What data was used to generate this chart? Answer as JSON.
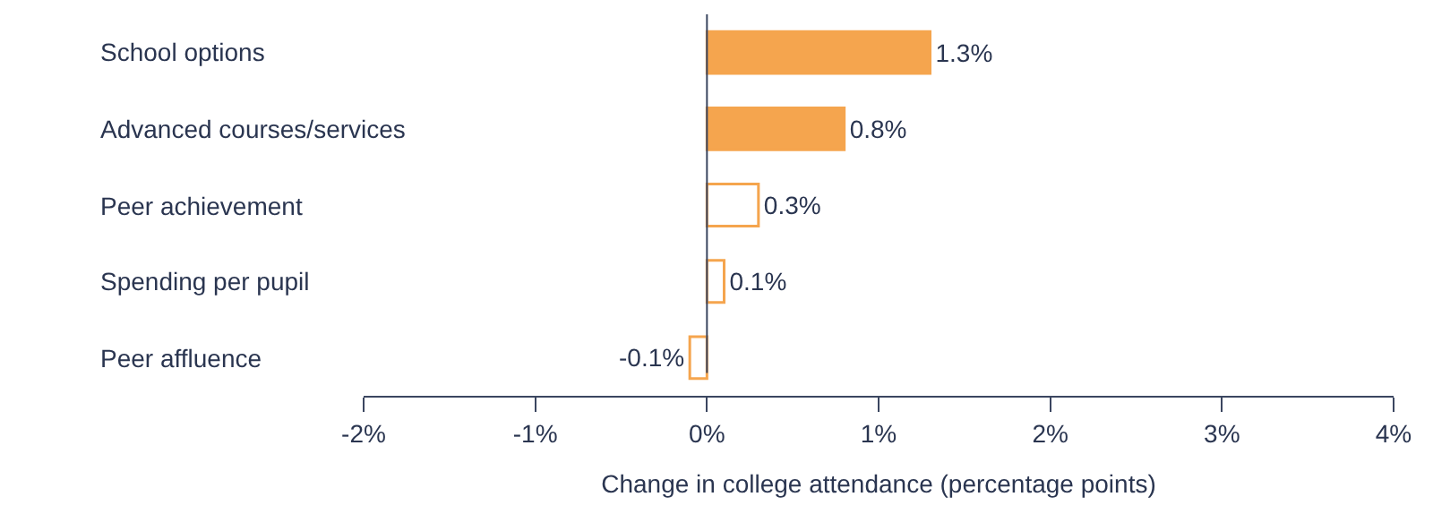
{
  "chart_data": {
    "type": "bar",
    "orientation": "horizontal",
    "xlabel": "Change in college attendance (percentage points)",
    "categories": [
      "School options",
      "Advanced courses/services",
      "Peer achievement",
      "Spending per pupil",
      "Peer affluence"
    ],
    "series": [
      {
        "color": "#f5a54e",
        "colors": [
          "#f5a54e",
          "#f5a54e",
          "#ffffff",
          "#ffffff",
          "#ffffff"
        ],
        "values": [
          1.3,
          0.8,
          0.3,
          0.1,
          -0.1
        ],
        "value_labels": [
          "1.3%",
          "0.8%",
          "0.3%",
          "0.1%",
          "-0.1%"
        ]
      }
    ],
    "xlim": [
      -2,
      4
    ],
    "xticks": [
      {
        "value": -2,
        "label": "-2%"
      },
      {
        "value": -1,
        "label": "-1%"
      },
      {
        "value": 0,
        "label": "0%"
      },
      {
        "value": 1,
        "label": "1%"
      },
      {
        "value": 2,
        "label": "2%"
      },
      {
        "value": 3,
        "label": "3%"
      },
      {
        "value": 4,
        "label": "4%"
      }
    ],
    "ref_lines": [
      {
        "axis": "x",
        "value": 0,
        "color": "#3b4660"
      }
    ],
    "legend": false
  }
}
